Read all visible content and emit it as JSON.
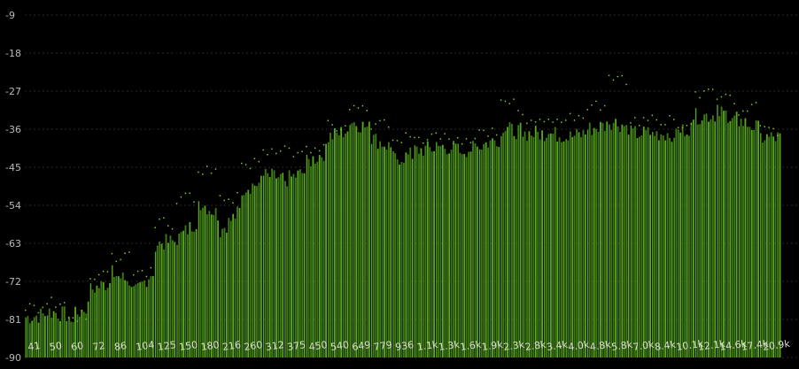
{
  "chart_data": {
    "type": "bar",
    "ylim": [
      -90,
      -9
    ],
    "y_ticks": [
      "-9",
      "-18",
      "-27",
      "-36",
      "-45",
      "-54",
      "-63",
      "-72",
      "-81",
      "-90"
    ],
    "x_labels": [
      "41",
      "50",
      "60",
      "72",
      "86",
      "104",
      "125",
      "150",
      "180",
      "216",
      "260",
      "312",
      "375",
      "450",
      "540",
      "649",
      "779",
      "936",
      "1.1k",
      "1.3k",
      "1.6k",
      "1.9k",
      "2.3k",
      "2.8k",
      "3.4k",
      "4.0k",
      "4.8k",
      "5.8k",
      "7.0k",
      "8.4k",
      "10.1k",
      "12.1k",
      "14.6k",
      "17.4k",
      "20.9k"
    ],
    "grid": true,
    "bar_color": "#3d7a12",
    "peak_color": "#7cc83a",
    "background": "#000000",
    "series": [
      {
        "values": [
          -80.5,
          -79,
          -81,
          -74,
          -70,
          -75,
          -63,
          -62,
          -53,
          -60,
          -50,
          -47,
          -48,
          -44,
          -38,
          -34,
          -38,
          -43,
          -41,
          -40,
          -41,
          -40,
          -36,
          -37,
          -37,
          -38,
          -36,
          -34,
          -37,
          -37,
          -37,
          -33,
          -32,
          -34,
          -38
        ],
        "peaks": [
          -78,
          -77,
          -80,
          -70,
          -66,
          -70,
          -58,
          -52,
          -45,
          -52,
          -44,
          -42,
          -41,
          -40,
          -35,
          -30,
          -35,
          -38,
          -38,
          -38,
          -38,
          -36,
          -30,
          -33,
          -33,
          -33,
          -30,
          -24,
          -34,
          -34,
          -34,
          -27,
          -29,
          -31,
          -36
        ]
      }
    ]
  }
}
